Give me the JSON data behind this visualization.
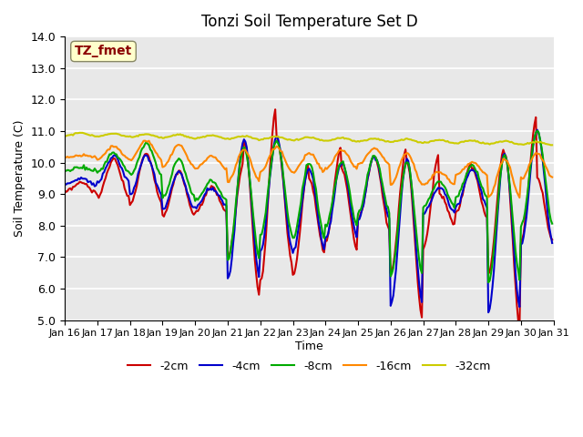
{
  "title": "Tonzi Soil Temperature Set D",
  "xlabel": "Time",
  "ylabel": "Soil Temperature (C)",
  "ylim": [
    5.0,
    14.0
  ],
  "yticks": [
    5.0,
    6.0,
    7.0,
    8.0,
    9.0,
    10.0,
    11.0,
    12.0,
    13.0,
    14.0
  ],
  "xtick_labels": [
    "Jan 16",
    "Jan 17",
    "Jan 18",
    "Jan 19",
    "Jan 20",
    "Jan 21",
    "Jan 22",
    "Jan 23",
    "Jan 24",
    "Jan 25",
    "Jan 26",
    "Jan 27",
    "Jan 28",
    "Jan 29",
    "Jan 30",
    "Jan 31"
  ],
  "annotation_text": "TZ_fmet",
  "annotation_color": "#8B0000",
  "annotation_bg": "#FFFFCC",
  "series_labels": [
    "-2cm",
    "-4cm",
    "-8cm",
    "-16cm",
    "-32cm"
  ],
  "series_colors": [
    "#CC0000",
    "#0000CC",
    "#00AA00",
    "#FF8800",
    "#CCCC00"
  ],
  "line_width": 1.5,
  "plot_bg": "#E8E8E8"
}
